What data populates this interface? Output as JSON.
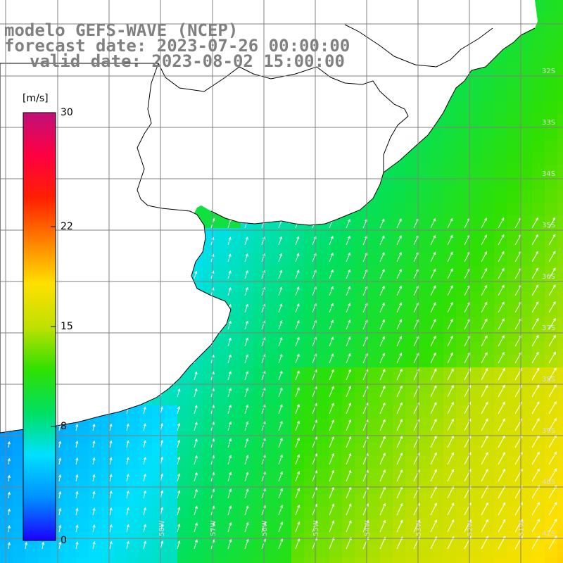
{
  "title": {
    "line1": "modelo GEFS-WAVE (NCEP)",
    "line2": "forecast date: 2023-07-26 00:00:00",
    "line3": "valid date: 2023-08-02 15:00:00"
  },
  "colorbar": {
    "unit": "[m/s]",
    "min": 0,
    "max": 30,
    "ticks": [
      {
        "value": 30,
        "label": "30"
      },
      {
        "value": 22,
        "label": "22"
      },
      {
        "value": 15,
        "label": "15"
      },
      {
        "value": 8,
        "label": "8"
      },
      {
        "value": 0,
        "label": "0"
      }
    ],
    "stops": [
      "#1a00ff",
      "#0090ff",
      "#00e0ff",
      "#00e060",
      "#30e000",
      "#c0e000",
      "#ffe000",
      "#ff8000",
      "#ff2000",
      "#ff0040",
      "#c0107a"
    ]
  },
  "map": {
    "lat_labels": [
      "32S",
      "33S",
      "34S",
      "35S",
      "36S",
      "37S",
      "38S",
      "39S",
      "40S",
      "41S"
    ],
    "lon_labels": [
      "58W",
      "57W",
      "56W",
      "55W",
      "54W",
      "53W",
      "52W",
      "51W"
    ],
    "land_color": "#ffffff",
    "grid_color": "#808080"
  },
  "chart_data": {
    "type": "heatmap",
    "variable": "wind speed and direction",
    "colorbar_range": [
      0,
      30
    ],
    "units": "m/s",
    "regions": [
      {
        "area": "Rio de la Plata estuary",
        "speed_ms": 9
      },
      {
        "area": "Uruguayan coast",
        "speed_ms": 9
      },
      {
        "area": "Southern Brazil coast",
        "speed_ms": 10
      },
      {
        "area": "Buenos Aires province coast (west)",
        "speed_ms": 3
      },
      {
        "area": "Open ocean east (37S-39S)",
        "speed_ms": 15
      },
      {
        "area": "Southeast corner (41S)",
        "speed_ms": 18
      }
    ],
    "wind_direction": "predominantly from the south-southwest (arrows pointing north-northeast)"
  }
}
